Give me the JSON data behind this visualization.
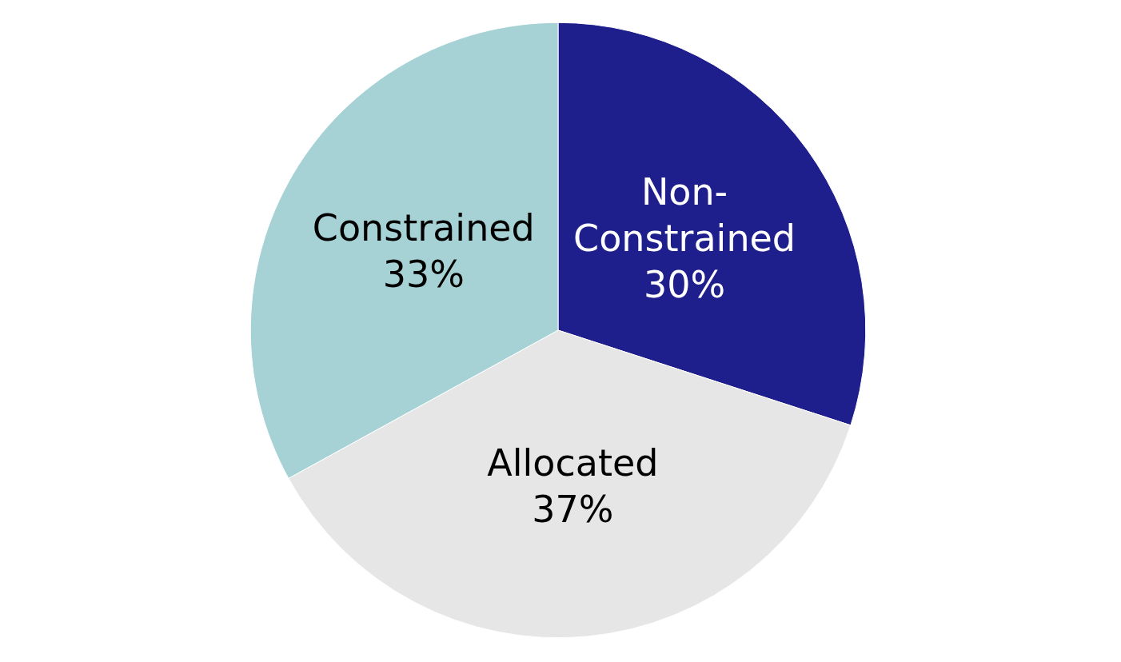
{
  "chart_data": {
    "type": "pie",
    "categories": [
      "Non-Constrained",
      "Allocated",
      "Constrained"
    ],
    "values": [
      30,
      37,
      33
    ],
    "colors": [
      "#1e1e8c",
      "#e6e6e6",
      "#a6d2d6"
    ],
    "value_labels": [
      "30%",
      "37%",
      "33%"
    ],
    "legend": false
  }
}
